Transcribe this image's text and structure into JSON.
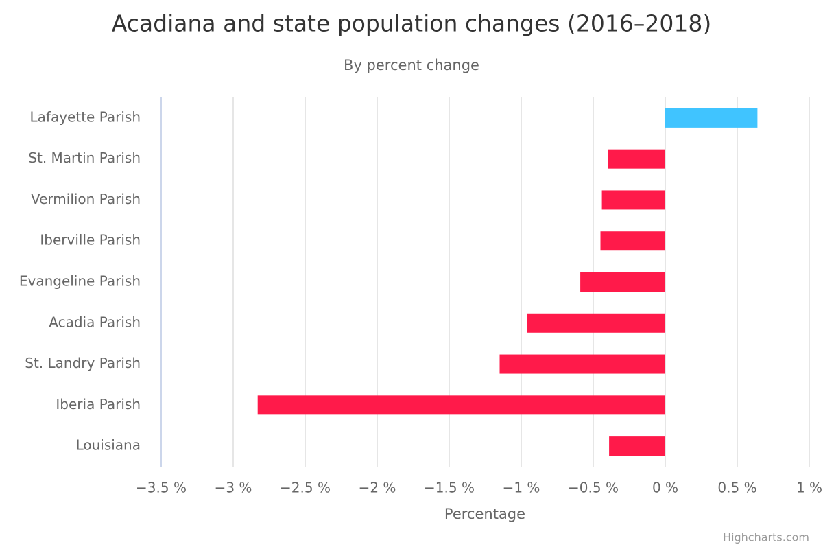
{
  "chart_data": {
    "type": "bar",
    "title": "Acadiana and state population changes (2016–2018)",
    "subtitle": "By percent change",
    "x_axis_label": "Percentage",
    "credits": "Highcharts.com",
    "categories": [
      "Lafayette Parish",
      "St. Martin Parish",
      "Vermilion Parish",
      "Iberville Parish",
      "Evangeline Parish",
      "Acadia Parish",
      "St. Landry Parish",
      "Iberia Parish",
      "Louisiana"
    ],
    "values": [
      0.64,
      -0.4,
      -0.44,
      -0.45,
      -0.59,
      -0.96,
      -1.15,
      -2.83,
      -0.39
    ],
    "color": "#40c4ff",
    "negative_color": "#ff1a4a",
    "xlim": [
      -3.5,
      1
    ],
    "xticks": [
      {
        "value": -3.5,
        "label": "−3.5 %"
      },
      {
        "value": -3,
        "label": "−3 %"
      },
      {
        "value": -2.5,
        "label": "−2.5 %"
      },
      {
        "value": -2,
        "label": "−2 %"
      },
      {
        "value": -1.5,
        "label": "−1.5 %"
      },
      {
        "value": -1,
        "label": "−1 %"
      },
      {
        "value": -0.5,
        "label": "−0.5 %"
      },
      {
        "value": 0,
        "label": "0 %"
      },
      {
        "value": 0.5,
        "label": "0.5 %"
      },
      {
        "value": 1,
        "label": "1 %"
      }
    ],
    "grid": true
  }
}
